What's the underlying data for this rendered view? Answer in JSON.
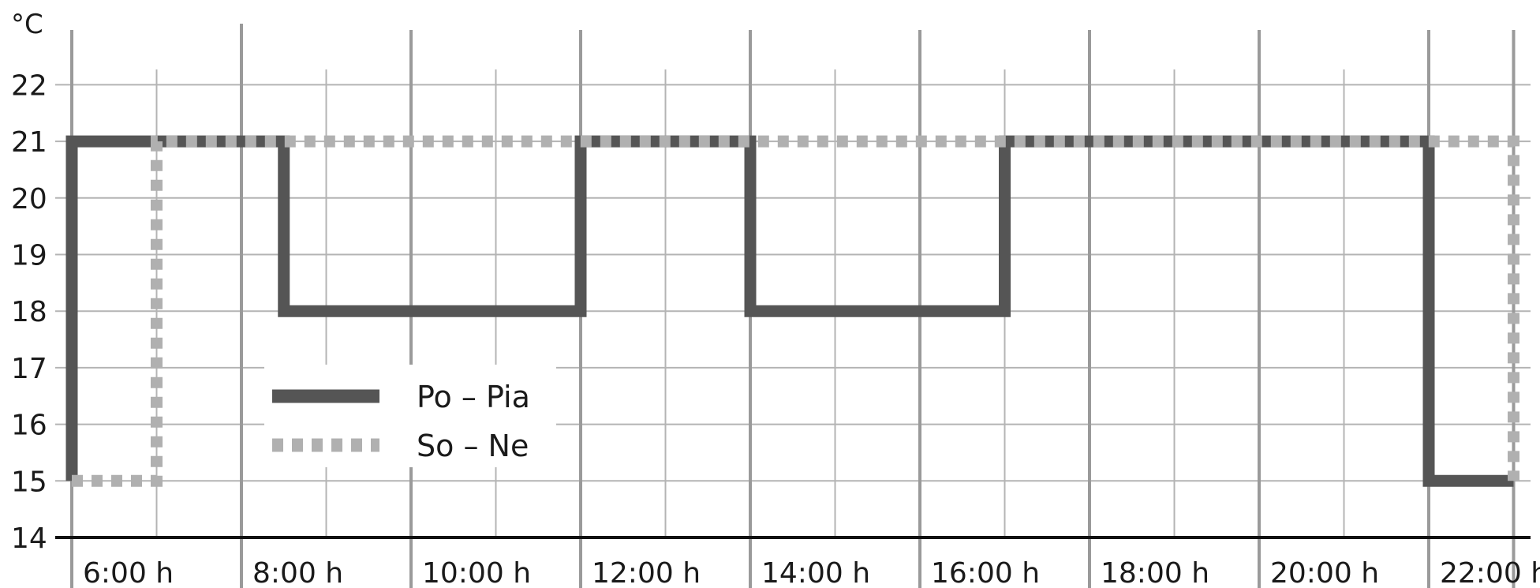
{
  "chart_data": {
    "type": "line",
    "step": true,
    "unit_label": "°C",
    "xlabel": "",
    "ylabel": "",
    "ylim": [
      14,
      22
    ],
    "xlim": [
      5.0,
      22.0
    ],
    "y_ticks": [
      "14",
      "15",
      "16",
      "17",
      "18",
      "19",
      "20",
      "21",
      "22"
    ],
    "x_ticks": [
      {
        "value": 6,
        "label": "6:00 h"
      },
      {
        "value": 8,
        "label": "8:00 h"
      },
      {
        "value": 10,
        "label": "10:00 h"
      },
      {
        "value": 12,
        "label": "12:00 h"
      },
      {
        "value": 14,
        "label": "14:00 h"
      },
      {
        "value": 16,
        "label": "16:00 h"
      },
      {
        "value": 18,
        "label": "18:00 h"
      },
      {
        "value": 20,
        "label": "20:00 h"
      },
      {
        "value": 22,
        "label": "22:00 h"
      }
    ],
    "minor_x": [
      6,
      7,
      8,
      9,
      10,
      11,
      12,
      13,
      14,
      15,
      16,
      17,
      18,
      19,
      20,
      21,
      22
    ],
    "grid": true,
    "legend_position": "center-left",
    "series": [
      {
        "name": "Po – Pia",
        "color": "#555555",
        "style": "solid",
        "points": [
          [
            5.0,
            15
          ],
          [
            5.0,
            21
          ],
          [
            7.5,
            21
          ],
          [
            7.5,
            18
          ],
          [
            11.0,
            18
          ],
          [
            11.0,
            21
          ],
          [
            13.0,
            21
          ],
          [
            13.0,
            18
          ],
          [
            16.0,
            18
          ],
          [
            16.0,
            21
          ],
          [
            21.0,
            21
          ],
          [
            21.0,
            15
          ],
          [
            22.0,
            15
          ]
        ]
      },
      {
        "name": "So – Ne",
        "color": "#b0b0b0",
        "style": "dotted",
        "points": [
          [
            5.0,
            15
          ],
          [
            6.0,
            15
          ],
          [
            6.0,
            21
          ],
          [
            22.0,
            21
          ],
          [
            22.0,
            15
          ]
        ]
      }
    ]
  }
}
